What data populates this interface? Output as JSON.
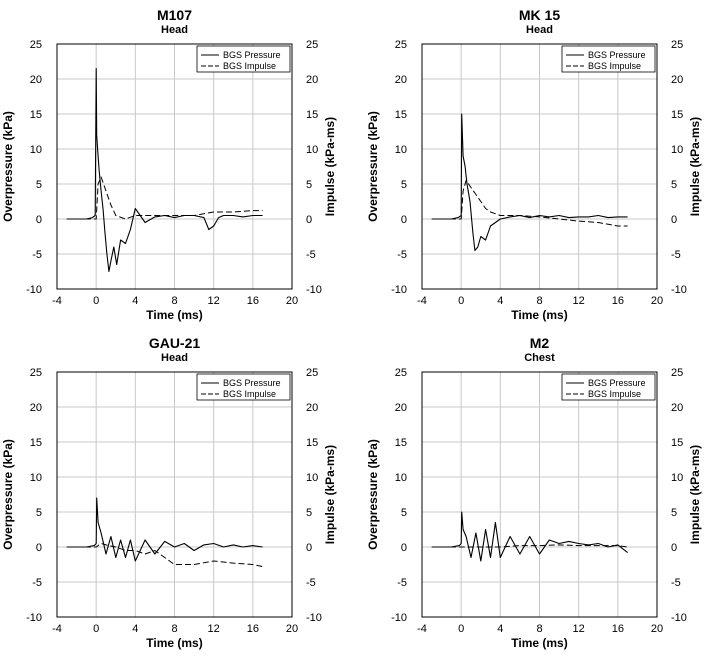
{
  "chart_data": [
    {
      "type": "line",
      "title": "M107",
      "subtitle": "Head",
      "xlabel": "Time (ms)",
      "ylabel": "Overpressure (kPa)",
      "y2label": "Impulse (kPa-ms)",
      "xlim": [
        -4,
        20
      ],
      "xticks": [
        -4,
        0,
        4,
        8,
        12,
        16,
        20
      ],
      "ylim": [
        -10,
        25
      ],
      "yticks": [
        -10,
        -5,
        0,
        5,
        10,
        15,
        20,
        25
      ],
      "y2lim": [
        -10,
        25
      ],
      "y2ticks": [
        -10,
        -5,
        0,
        5,
        10,
        15,
        20,
        25
      ],
      "grid": true,
      "legend": {
        "position": "top-right",
        "entries": [
          "BGS Pressure",
          "BGS Impulse"
        ]
      },
      "series": [
        {
          "name": "BGS Pressure",
          "style": "solid",
          "x": [
            -3.0,
            -2.0,
            -1.0,
            -0.4,
            -0.1,
            0.0,
            0.05,
            0.15,
            0.3,
            0.5,
            0.7,
            0.9,
            1.1,
            1.3,
            1.5,
            1.8,
            2.1,
            2.5,
            3.0,
            3.5,
            4.0,
            4.5,
            5.0,
            6.0,
            7.0,
            8.0,
            9.0,
            10.0,
            11.0,
            11.5,
            12.0,
            12.5,
            13.0,
            14.0,
            15.0,
            16.0,
            17.0
          ],
          "values": [
            0.0,
            0.0,
            0.0,
            0.2,
            0.5,
            21.5,
            12.0,
            10.0,
            7.0,
            4.0,
            1.5,
            -2.0,
            -5.0,
            -7.5,
            -6.0,
            -4.0,
            -6.5,
            -3.0,
            -3.5,
            -1.5,
            1.5,
            0.5,
            -0.5,
            0.3,
            0.5,
            0.2,
            0.5,
            0.5,
            0.2,
            -1.5,
            -1.0,
            0.2,
            0.5,
            0.5,
            0.3,
            0.5,
            0.5
          ]
        },
        {
          "name": "BGS Impulse",
          "style": "dashed",
          "x": [
            -3.0,
            -0.5,
            0.0,
            0.2,
            0.5,
            1.0,
            1.5,
            2.0,
            3.0,
            4.0,
            5.0,
            6.0,
            8.0,
            10.0,
            12.0,
            14.0,
            16.0,
            17.0
          ],
          "values": [
            0.0,
            0.0,
            0.0,
            5.0,
            6.0,
            4.0,
            2.0,
            0.5,
            0.0,
            0.5,
            0.5,
            0.5,
            0.5,
            0.5,
            1.0,
            1.0,
            1.2,
            1.2
          ]
        }
      ]
    },
    {
      "type": "line",
      "title": "MK 15",
      "subtitle": "Head",
      "xlabel": "Time (ms)",
      "ylabel": "Overpressure (kPa)",
      "y2label": "Impulse (kPa-ms)",
      "xlim": [
        -4,
        20
      ],
      "xticks": [
        -4,
        0,
        4,
        8,
        12,
        16,
        20
      ],
      "ylim": [
        -10,
        25
      ],
      "yticks": [
        -10,
        -5,
        0,
        5,
        10,
        15,
        20,
        25
      ],
      "y2lim": [
        -10,
        25
      ],
      "y2ticks": [
        -10,
        -5,
        0,
        5,
        10,
        15,
        20,
        25
      ],
      "grid": true,
      "legend": {
        "position": "top-right",
        "entries": [
          "BGS Pressure",
          "BGS Impulse"
        ]
      },
      "series": [
        {
          "name": "BGS Pressure",
          "style": "solid",
          "x": [
            -3.0,
            -2.0,
            -1.0,
            -0.3,
            0.0,
            0.05,
            0.2,
            0.4,
            0.6,
            0.9,
            1.2,
            1.4,
            1.7,
            2.0,
            2.5,
            3.0,
            3.5,
            4.0,
            5.0,
            6.0,
            7.0,
            8.0,
            9.0,
            10.0,
            11.0,
            12.0,
            13.0,
            14.0,
            15.0,
            16.0,
            17.0
          ],
          "values": [
            0.0,
            0.0,
            0.0,
            0.2,
            0.5,
            15.0,
            9.0,
            7.5,
            5.0,
            2.5,
            -2.0,
            -4.5,
            -4.0,
            -2.5,
            -3.0,
            -1.0,
            -0.5,
            0.0,
            0.3,
            0.5,
            0.2,
            0.5,
            0.3,
            0.5,
            0.2,
            0.3,
            0.3,
            0.5,
            0.2,
            0.3,
            0.3
          ]
        },
        {
          "name": "BGS Impulse",
          "style": "dashed",
          "x": [
            -3.0,
            -0.5,
            0.0,
            0.2,
            0.5,
            1.0,
            1.5,
            2.0,
            2.5,
            3.0,
            4.0,
            6.0,
            8.0,
            10.0,
            12.0,
            14.0,
            16.0,
            17.0
          ],
          "values": [
            0.0,
            0.0,
            0.0,
            4.0,
            5.5,
            4.5,
            3.5,
            2.5,
            1.5,
            1.0,
            0.5,
            0.5,
            0.3,
            0.0,
            -0.3,
            -0.5,
            -1.0,
            -1.0
          ]
        }
      ]
    },
    {
      "type": "line",
      "title": "GAU-21",
      "subtitle": "Head",
      "xlabel": "Time (ms)",
      "ylabel": "Overpressure (kPa)",
      "y2label": "Impulse (kPa-ms)",
      "xlim": [
        -4,
        20
      ],
      "xticks": [
        -4,
        0,
        4,
        8,
        12,
        16,
        20
      ],
      "ylim": [
        -10,
        25
      ],
      "yticks": [
        -10,
        -5,
        0,
        5,
        10,
        15,
        20,
        25
      ],
      "y2lim": [
        -10,
        25
      ],
      "y2ticks": [
        -10,
        -5,
        0,
        5,
        10,
        15,
        20,
        25
      ],
      "grid": true,
      "legend": {
        "position": "top-right",
        "entries": [
          "BGS Pressure",
          "BGS Impulse"
        ]
      },
      "series": [
        {
          "name": "BGS Pressure",
          "style": "solid",
          "x": [
            -3.0,
            -2.0,
            -1.0,
            -0.2,
            0.0,
            0.05,
            0.2,
            0.5,
            1.0,
            1.5,
            2.0,
            2.5,
            3.0,
            3.5,
            4.0,
            5.0,
            6.0,
            7.0,
            8.0,
            9.0,
            10.0,
            11.0,
            12.0,
            13.0,
            14.0,
            15.0,
            16.0,
            17.0
          ],
          "values": [
            0.0,
            0.0,
            0.0,
            0.2,
            0.5,
            7.0,
            3.5,
            2.0,
            -1.0,
            1.5,
            -1.5,
            1.0,
            -1.5,
            1.0,
            -2.0,
            1.0,
            -1.0,
            0.8,
            0.0,
            0.5,
            -0.5,
            0.3,
            0.5,
            0.0,
            0.3,
            0.0,
            0.2,
            0.0
          ]
        },
        {
          "name": "BGS Impulse",
          "style": "dashed",
          "x": [
            -3.0,
            -0.5,
            0.0,
            0.5,
            1.0,
            2.0,
            3.0,
            4.0,
            5.0,
            6.0,
            7.0,
            8.0,
            10.0,
            12.0,
            14.0,
            16.0,
            17.0
          ],
          "values": [
            0.0,
            0.0,
            0.0,
            0.5,
            0.3,
            0.0,
            -0.5,
            -0.5,
            -1.0,
            -0.5,
            -1.5,
            -2.5,
            -2.5,
            -2.0,
            -2.3,
            -2.5,
            -2.8
          ]
        }
      ]
    },
    {
      "type": "line",
      "title": "M2",
      "subtitle": "Chest",
      "xlabel": "Time (ms)",
      "ylabel": "Overpressure (kPa)",
      "y2label": "Impulse (kPa-ms)",
      "xlim": [
        -4,
        20
      ],
      "xticks": [
        -4,
        0,
        4,
        8,
        12,
        16,
        20
      ],
      "ylim": [
        -10,
        25
      ],
      "yticks": [
        -10,
        -5,
        0,
        5,
        10,
        15,
        20,
        25
      ],
      "y2lim": [
        -10,
        25
      ],
      "y2ticks": [
        -10,
        -5,
        0,
        5,
        10,
        15,
        20,
        25
      ],
      "grid": true,
      "legend": {
        "position": "top-right",
        "entries": [
          "BGS Pressure",
          "BGS Impulse"
        ]
      },
      "series": [
        {
          "name": "BGS Pressure",
          "style": "solid",
          "x": [
            -3.0,
            -2.0,
            -1.0,
            -0.2,
            0.0,
            0.05,
            0.2,
            0.5,
            1.0,
            1.5,
            2.0,
            2.5,
            3.0,
            3.5,
            4.0,
            5.0,
            6.0,
            7.0,
            8.0,
            9.0,
            10.0,
            11.0,
            12.0,
            13.0,
            14.0,
            15.0,
            16.0,
            17.0
          ],
          "values": [
            0.0,
            0.0,
            0.0,
            0.2,
            0.5,
            5.0,
            2.5,
            1.5,
            -1.5,
            2.0,
            -2.0,
            2.5,
            -1.5,
            3.5,
            -1.5,
            1.5,
            -1.0,
            1.5,
            -1.0,
            1.0,
            0.5,
            0.8,
            0.5,
            0.3,
            0.5,
            0.0,
            0.3,
            -0.8
          ]
        },
        {
          "name": "BGS Impulse",
          "style": "dashed",
          "x": [
            -3.0,
            -0.5,
            0.0,
            1.0,
            2.0,
            4.0,
            6.0,
            8.0,
            10.0,
            12.0,
            14.0,
            16.0,
            17.0
          ],
          "values": [
            0.0,
            0.0,
            0.0,
            0.0,
            0.0,
            0.0,
            0.2,
            0.2,
            0.3,
            0.2,
            0.2,
            0.2,
            0.0
          ]
        }
      ]
    }
  ]
}
